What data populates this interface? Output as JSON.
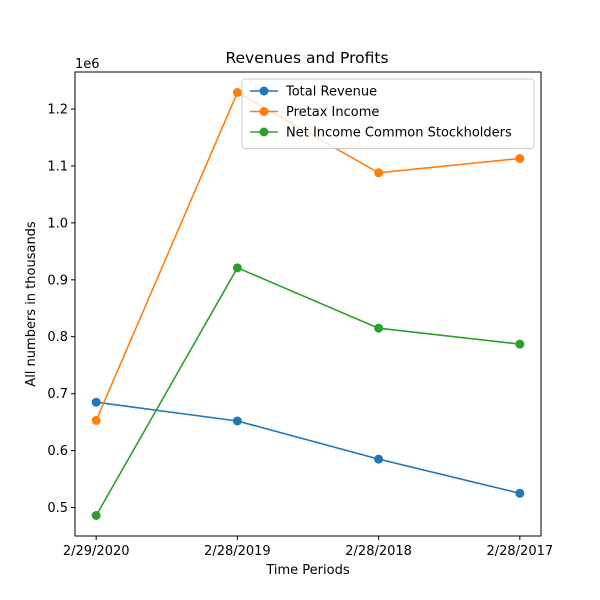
{
  "chart_data": {
    "type": "line",
    "title": "Revenues and Profits",
    "xlabel": "Time Periods",
    "ylabel": "All numbers in thousands",
    "y_offset_label": "1e6",
    "categories": [
      "2/29/2020",
      "2/28/2019",
      "2/28/2018",
      "2/28/2017"
    ],
    "ylim": [
      0.45,
      1.265
    ],
    "yticks": [
      0.5,
      0.6,
      0.7,
      0.8,
      0.9,
      1.0,
      1.1,
      1.2
    ],
    "ytick_labels": [
      "0.5",
      "0.6",
      "0.7",
      "0.8",
      "0.9",
      "1.0",
      "1.1",
      "1.2"
    ],
    "legend_position": "top-right",
    "grid": false,
    "series": [
      {
        "name": "Total Revenue",
        "color": "#1f77b4",
        "values": [
          0.685,
          0.652,
          0.585,
          0.525
        ]
      },
      {
        "name": "Pretax Income",
        "color": "#ff7f0e",
        "values": [
          0.653,
          1.229,
          1.088,
          1.113
        ]
      },
      {
        "name": "Net Income Common Stockholders",
        "color": "#2ca02c",
        "values": [
          0.486,
          0.921,
          0.815,
          0.787
        ]
      }
    ]
  }
}
